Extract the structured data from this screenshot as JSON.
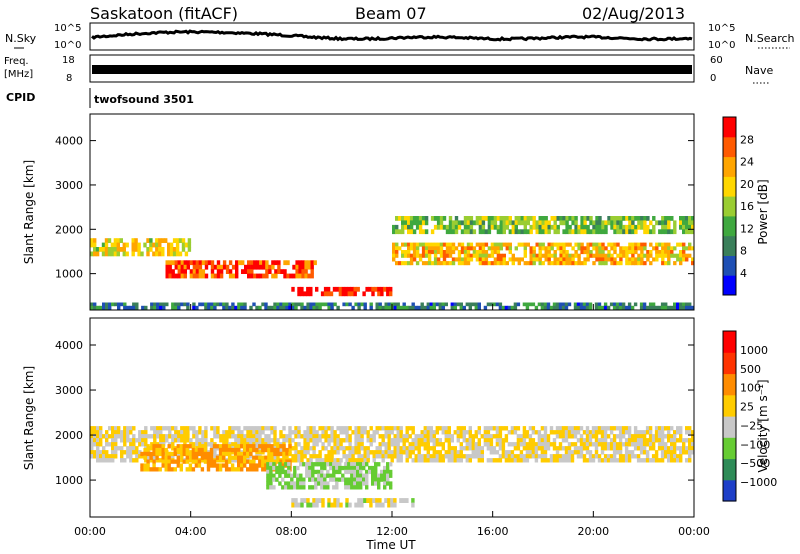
{
  "header": {
    "station": "Saskatoon (fitACF)",
    "beam": "Beam 07",
    "date": "02/Aug/2013"
  },
  "side_labels": {
    "nsky": "N.Sky",
    "freq_line1": "Freq.",
    "freq_line2": "[MHz]",
    "cpid": "CPID",
    "nsearch": "N.Search",
    "nave": "Nave"
  },
  "strips": {
    "noise_ticks_left": [
      "10^5",
      "10^0"
    ],
    "noise_ticks_right": [
      "10^5",
      "10^0"
    ],
    "freq_ticks_left": [
      "18",
      "8"
    ],
    "freq_ticks_right": [
      "60",
      "0"
    ],
    "cpid_text": "twofsound 3501"
  },
  "axes": {
    "xlabel": "Time UT",
    "ylabel_top": "Slant Range [km]",
    "ylabel_bottom": "Slant Range [km]",
    "xticks": [
      "00:00",
      "04:00",
      "08:00",
      "12:00",
      "16:00",
      "20:00",
      "00:00"
    ],
    "yticks": [
      "1000",
      "2000",
      "3000",
      "4000"
    ]
  },
  "colorbars": {
    "power": {
      "title": "Power [dB]",
      "ticks": [
        "4",
        "8",
        "12",
        "16",
        "20",
        "24",
        "28"
      ],
      "colors": [
        "#0000ff",
        "#1e4fb4",
        "#3a7f5a",
        "#3fa83f",
        "#9acd32",
        "#ffd700",
        "#ffa500",
        "#ff5a00",
        "#ff0000"
      ]
    },
    "velocity": {
      "title": "Velocity [m s⁻¹]",
      "ticks": [
        "1000",
        "500",
        "100",
        "25",
        "−25",
        "−100",
        "−500",
        "−1000"
      ],
      "colors": [
        "#1e3fc8",
        "#2e8b57",
        "#66cc33",
        "#c8c8c8",
        "#ffcc00",
        "#ff8c00",
        "#ff3300",
        "#ff0000"
      ]
    }
  },
  "chart_data": [
    {
      "type": "heatmap",
      "title": "Power",
      "xlabel": "Time UT",
      "ylabel": "Slant Range [km]",
      "xlim": [
        0,
        24
      ],
      "ylim": [
        180,
        4600
      ],
      "clim": [
        0,
        30
      ],
      "bands": [
        {
          "t0": 0,
          "t1": 4,
          "r0": 1400,
          "r1": 1800,
          "value": 18
        },
        {
          "t0": 3,
          "t1": 9,
          "r0": 900,
          "r1": 1300,
          "value": 26
        },
        {
          "t0": 8,
          "t1": 12,
          "r0": 500,
          "r1": 700,
          "value": 28
        },
        {
          "t0": 12,
          "t1": 24,
          "r0": 1200,
          "r1": 1700,
          "value": 20
        },
        {
          "t0": 12,
          "t1": 24,
          "r0": 1900,
          "r1": 2300,
          "value": 14
        },
        {
          "t0": 0,
          "t1": 24,
          "r0": 200,
          "r1": 350,
          "value": 8
        }
      ]
    },
    {
      "type": "heatmap",
      "title": "Velocity",
      "xlabel": "Time UT",
      "ylabel": "Slant Range [km]",
      "xlim": [
        0,
        24
      ],
      "ylim": [
        180,
        4600
      ],
      "clim": [
        -1000,
        1000
      ],
      "bands": [
        {
          "t0": 0,
          "t1": 24,
          "r0": 1400,
          "r1": 2200,
          "value": 0
        },
        {
          "t0": 2,
          "t1": 8,
          "r0": 1200,
          "r1": 1800,
          "value": 300
        },
        {
          "t0": 7,
          "t1": 12,
          "r0": 800,
          "r1": 1400,
          "value": -300
        },
        {
          "t0": 8,
          "t1": 13,
          "r0": 400,
          "r1": 600,
          "value": -100
        }
      ]
    }
  ]
}
